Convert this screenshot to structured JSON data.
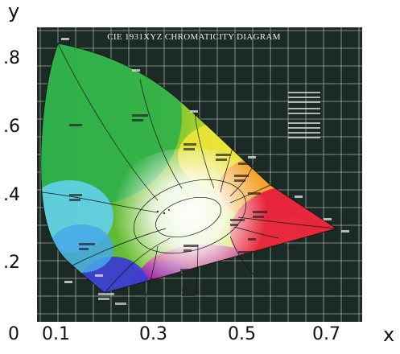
{
  "axes": {
    "y_name": "y",
    "x_name": "x",
    "origin": "0",
    "y_ticks": [
      ".8",
      ".6",
      ".4",
      ".2"
    ],
    "x_ticks": [
      "0.1",
      "0.3",
      "0.5",
      "0.7"
    ]
  },
  "diagram": {
    "title": "CIE 1931XYZ CHROMATICITY DIAGRAM",
    "colors": {
      "background": "#1b2a24",
      "grid": "#b9c3bd",
      "green": "#34b03a",
      "yellow": "#f4ec3a",
      "orange": "#f7902a",
      "red": "#e8203a",
      "purple": "#b0208c",
      "blue": "#3c3cc8",
      "cyan": "#6ad4ec",
      "white": "#ffffff"
    }
  }
}
